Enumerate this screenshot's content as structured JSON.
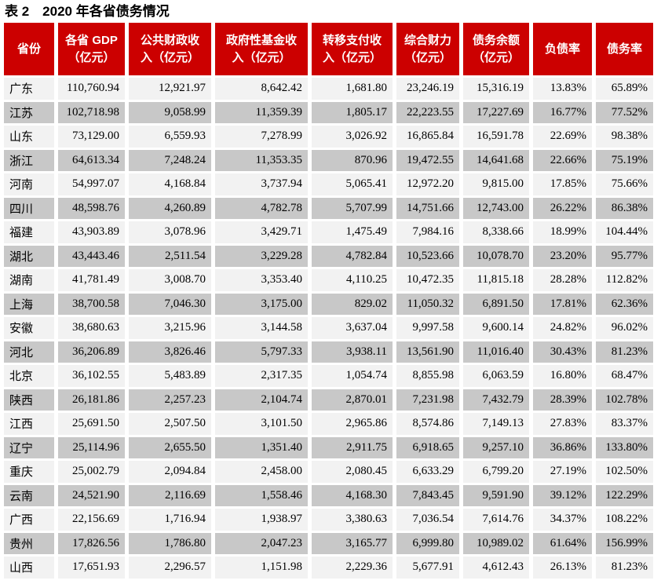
{
  "page": {
    "title": "表 2　2020 年各省债务情况"
  },
  "colors": {
    "header_bg": "#CC0000",
    "header_text": "#FFFFFF",
    "row_light": "#F2F2F2",
    "row_dark": "#C8C8C8",
    "page_bg": "#FFFFFF",
    "text": "#000000"
  },
  "table": {
    "columns": [
      {
        "key": "province",
        "label": "省份"
      },
      {
        "key": "gdp",
        "label": "各省 GDP\n（亿元）"
      },
      {
        "key": "fiscal",
        "label": "公共财政收\n入（亿元）"
      },
      {
        "key": "fund",
        "label": "政府性基金收\n入（亿元）"
      },
      {
        "key": "transfer",
        "label": "转移支付收\n入（亿元）"
      },
      {
        "key": "composite",
        "label": "综合财力\n（亿元）"
      },
      {
        "key": "debt_balance",
        "label": "债务余额\n（亿元）"
      },
      {
        "key": "liability_rate",
        "label": "负债率"
      },
      {
        "key": "debt_rate",
        "label": "债务率"
      }
    ],
    "rows": [
      {
        "province": "广东",
        "gdp": "110,760.94",
        "fiscal": "12,921.97",
        "fund": "8,642.42",
        "transfer": "1,681.80",
        "composite": "23,246.19",
        "debt_balance": "15,316.19",
        "liability_rate": "13.83%",
        "debt_rate": "65.89%"
      },
      {
        "province": "江苏",
        "gdp": "102,718.98",
        "fiscal": "9,058.99",
        "fund": "11,359.39",
        "transfer": "1,805.17",
        "composite": "22,223.55",
        "debt_balance": "17,227.69",
        "liability_rate": "16.77%",
        "debt_rate": "77.52%"
      },
      {
        "province": "山东",
        "gdp": "73,129.00",
        "fiscal": "6,559.93",
        "fund": "7,278.99",
        "transfer": "3,026.92",
        "composite": "16,865.84",
        "debt_balance": "16,591.78",
        "liability_rate": "22.69%",
        "debt_rate": "98.38%"
      },
      {
        "province": "浙江",
        "gdp": "64,613.34",
        "fiscal": "7,248.24",
        "fund": "11,353.35",
        "transfer": "870.96",
        "composite": "19,472.55",
        "debt_balance": "14,641.68",
        "liability_rate": "22.66%",
        "debt_rate": "75.19%"
      },
      {
        "province": "河南",
        "gdp": "54,997.07",
        "fiscal": "4,168.84",
        "fund": "3,737.94",
        "transfer": "5,065.41",
        "composite": "12,972.20",
        "debt_balance": "9,815.00",
        "liability_rate": "17.85%",
        "debt_rate": "75.66%"
      },
      {
        "province": "四川",
        "gdp": "48,598.76",
        "fiscal": "4,260.89",
        "fund": "4,782.78",
        "transfer": "5,707.99",
        "composite": "14,751.66",
        "debt_balance": "12,743.00",
        "liability_rate": "26.22%",
        "debt_rate": "86.38%"
      },
      {
        "province": "福建",
        "gdp": "43,903.89",
        "fiscal": "3,078.96",
        "fund": "3,429.71",
        "transfer": "1,475.49",
        "composite": "7,984.16",
        "debt_balance": "8,338.66",
        "liability_rate": "18.99%",
        "debt_rate": "104.44%"
      },
      {
        "province": "湖北",
        "gdp": "43,443.46",
        "fiscal": "2,511.54",
        "fund": "3,229.28",
        "transfer": "4,782.84",
        "composite": "10,523.66",
        "debt_balance": "10,078.70",
        "liability_rate": "23.20%",
        "debt_rate": "95.77%"
      },
      {
        "province": "湖南",
        "gdp": "41,781.49",
        "fiscal": "3,008.70",
        "fund": "3,353.40",
        "transfer": "4,110.25",
        "composite": "10,472.35",
        "debt_balance": "11,815.18",
        "liability_rate": "28.28%",
        "debt_rate": "112.82%"
      },
      {
        "province": "上海",
        "gdp": "38,700.58",
        "fiscal": "7,046.30",
        "fund": "3,175.00",
        "transfer": "829.02",
        "composite": "11,050.32",
        "debt_balance": "6,891.50",
        "liability_rate": "17.81%",
        "debt_rate": "62.36%"
      },
      {
        "province": "安徽",
        "gdp": "38,680.63",
        "fiscal": "3,215.96",
        "fund": "3,144.58",
        "transfer": "3,637.04",
        "composite": "9,997.58",
        "debt_balance": "9,600.14",
        "liability_rate": "24.82%",
        "debt_rate": "96.02%"
      },
      {
        "province": "河北",
        "gdp": "36,206.89",
        "fiscal": "3,826.46",
        "fund": "5,797.33",
        "transfer": "3,938.11",
        "composite": "13,561.90",
        "debt_balance": "11,016.40",
        "liability_rate": "30.43%",
        "debt_rate": "81.23%"
      },
      {
        "province": "北京",
        "gdp": "36,102.55",
        "fiscal": "5,483.89",
        "fund": "2,317.35",
        "transfer": "1,054.74",
        "composite": "8,855.98",
        "debt_balance": "6,063.59",
        "liability_rate": "16.80%",
        "debt_rate": "68.47%"
      },
      {
        "province": "陕西",
        "gdp": "26,181.86",
        "fiscal": "2,257.23",
        "fund": "2,104.74",
        "transfer": "2,870.01",
        "composite": "7,231.98",
        "debt_balance": "7,432.79",
        "liability_rate": "28.39%",
        "debt_rate": "102.78%"
      },
      {
        "province": "江西",
        "gdp": "25,691.50",
        "fiscal": "2,507.50",
        "fund": "3,101.50",
        "transfer": "2,965.86",
        "composite": "8,574.86",
        "debt_balance": "7,149.13",
        "liability_rate": "27.83%",
        "debt_rate": "83.37%"
      },
      {
        "province": "辽宁",
        "gdp": "25,114.96",
        "fiscal": "2,655.50",
        "fund": "1,351.40",
        "transfer": "2,911.75",
        "composite": "6,918.65",
        "debt_balance": "9,257.10",
        "liability_rate": "36.86%",
        "debt_rate": "133.80%"
      },
      {
        "province": "重庆",
        "gdp": "25,002.79",
        "fiscal": "2,094.84",
        "fund": "2,458.00",
        "transfer": "2,080.45",
        "composite": "6,633.29",
        "debt_balance": "6,799.20",
        "liability_rate": "27.19%",
        "debt_rate": "102.50%"
      },
      {
        "province": "云南",
        "gdp": "24,521.90",
        "fiscal": "2,116.69",
        "fund": "1,558.46",
        "transfer": "4,168.30",
        "composite": "7,843.45",
        "debt_balance": "9,591.90",
        "liability_rate": "39.12%",
        "debt_rate": "122.29%"
      },
      {
        "province": "广西",
        "gdp": "22,156.69",
        "fiscal": "1,716.94",
        "fund": "1,938.97",
        "transfer": "3,380.63",
        "composite": "7,036.54",
        "debt_balance": "7,614.76",
        "liability_rate": "34.37%",
        "debt_rate": "108.22%"
      },
      {
        "province": "贵州",
        "gdp": "17,826.56",
        "fiscal": "1,786.80",
        "fund": "2,047.23",
        "transfer": "3,165.77",
        "composite": "6,999.80",
        "debt_balance": "10,989.02",
        "liability_rate": "61.64%",
        "debt_rate": "156.99%"
      },
      {
        "province": "山西",
        "gdp": "17,651.93",
        "fiscal": "2,296.57",
        "fund": "1,151.98",
        "transfer": "2,229.36",
        "composite": "5,677.91",
        "debt_balance": "4,612.43",
        "liability_rate": "26.13%",
        "debt_rate": "81.23%"
      }
    ]
  }
}
